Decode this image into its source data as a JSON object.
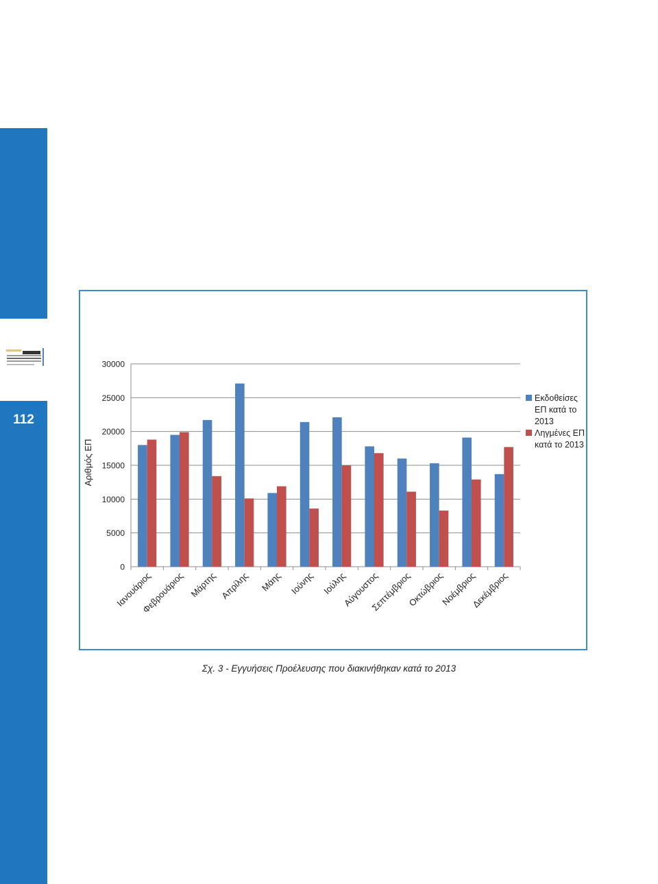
{
  "page": {
    "page_number": "112",
    "caption": "Σχ. 3 - Εγγυήσεις Προέλευσης που διακινήθηκαν κατά το 2013",
    "accent_color": "#1f78bf",
    "frame_color": "#3a8bcf"
  },
  "chart_data": {
    "type": "bar",
    "title": "",
    "xlabel": "",
    "ylabel": "Αριθμός ΕΠ",
    "ylim": [
      0,
      30000
    ],
    "yticks": [
      0,
      5000,
      10000,
      15000,
      20000,
      25000,
      30000
    ],
    "grid": true,
    "legend_position": "right",
    "categories": [
      "Ιανουάριος",
      "Φεβρουάριος",
      "Μάρτης",
      "Απρίλης",
      "Μάης",
      "Ιούνης",
      "Ιούλης",
      "Αύγουστος",
      "Σεπτέμβριος",
      "Οκτώβριος",
      "Νοέμβριος",
      "Δεκέμβριος"
    ],
    "series": [
      {
        "name": "Εκδοθείσες ΕΠ κατά το 2013",
        "legend_lines": [
          "Εκδοθείσες",
          "ΕΠ κατά το",
          "2013"
        ],
        "color": "#4f81bd",
        "values": [
          18000,
          19500,
          21700,
          27100,
          10900,
          21400,
          22100,
          17800,
          16000,
          15300,
          19100,
          13700
        ]
      },
      {
        "name": "Ληγμένες ΕΠ κατά το 2013",
        "legend_lines": [
          "Ληγμένες ΕΠ",
          "κατά το 2013"
        ],
        "color": "#c0504d",
        "values": [
          18800,
          19900,
          13400,
          10100,
          11900,
          8600,
          15000,
          16800,
          11100,
          8300,
          12900,
          17700
        ]
      }
    ]
  }
}
